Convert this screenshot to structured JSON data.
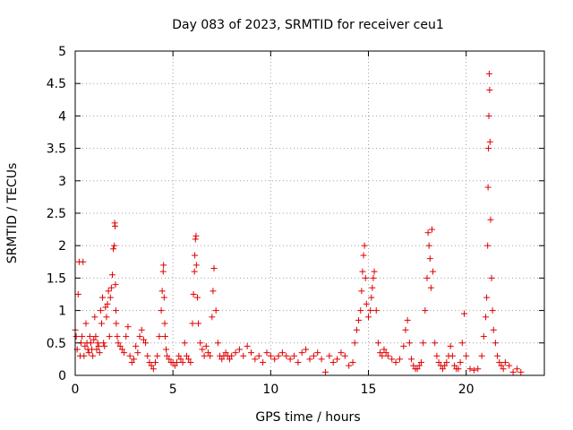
{
  "chart_data": {
    "type": "scatter",
    "title": "Day 083 of 2023, SRMTID for receiver ceu1",
    "xlabel": "GPS time / hours",
    "ylabel": "SRMTID / TECUs",
    "xlim": [
      0,
      24
    ],
    "ylim": [
      0,
      5
    ],
    "xticks": [
      0,
      5,
      10,
      15,
      20
    ],
    "xtick_labels": [
      "0",
      "5",
      "10",
      "15",
      "20"
    ],
    "yticks": [
      0,
      0.5,
      1,
      1.5,
      2,
      2.5,
      3,
      3.5,
      4,
      4.5,
      5
    ],
    "ytick_labels": [
      "0",
      "0.5",
      "1",
      "1.5",
      "2",
      "2.5",
      "3",
      "3.5",
      "4",
      "4.5",
      "5"
    ],
    "grid": true,
    "marker": "+",
    "color": "#e00000",
    "series": [
      {
        "name": "ceu1",
        "x": [
          0.0,
          0.05,
          0.1,
          0.15,
          0.2,
          0.25,
          0.3,
          0.35,
          0.4,
          0.45,
          0.5,
          0.55,
          0.6,
          0.65,
          0.7,
          0.75,
          0.8,
          0.85,
          0.9,
          0.95,
          1.0,
          1.05,
          1.1,
          1.15,
          1.2,
          1.25,
          1.3,
          1.35,
          1.4,
          1.45,
          1.5,
          1.55,
          1.6,
          1.65,
          1.7,
          1.75,
          1.8,
          1.85,
          1.9,
          1.95,
          2.0,
          2.02,
          2.04,
          2.06,
          2.08,
          2.1,
          2.15,
          2.2,
          2.3,
          2.4,
          2.5,
          2.6,
          2.7,
          2.8,
          2.9,
          3.0,
          3.1,
          3.2,
          3.3,
          3.4,
          3.5,
          3.6,
          3.7,
          3.8,
          3.9,
          4.0,
          4.1,
          4.2,
          4.3,
          4.4,
          4.45,
          4.5,
          4.52,
          4.55,
          4.58,
          4.6,
          4.65,
          4.7,
          4.8,
          4.9,
          5.0,
          5.1,
          5.2,
          5.3,
          5.4,
          5.5,
          5.6,
          5.7,
          5.8,
          5.9,
          6.0,
          6.05,
          6.1,
          6.12,
          6.15,
          6.18,
          6.2,
          6.25,
          6.3,
          6.4,
          6.5,
          6.6,
          6.7,
          6.8,
          6.9,
          7.0,
          7.05,
          7.1,
          7.2,
          7.3,
          7.4,
          7.5,
          7.6,
          7.7,
          7.8,
          7.9,
          8.0,
          8.2,
          8.4,
          8.6,
          8.8,
          9.0,
          9.2,
          9.4,
          9.6,
          9.8,
          10.0,
          10.2,
          10.4,
          10.6,
          10.8,
          11.0,
          11.2,
          11.4,
          11.6,
          11.8,
          12.0,
          12.2,
          12.4,
          12.6,
          12.8,
          13.0,
          13.2,
          13.4,
          13.6,
          13.8,
          14.0,
          14.2,
          14.3,
          14.4,
          14.5,
          14.6,
          14.65,
          14.7,
          14.75,
          14.8,
          14.85,
          14.9,
          15.0,
          15.1,
          15.15,
          15.2,
          15.25,
          15.3,
          15.4,
          15.5,
          15.6,
          15.7,
          15.8,
          15.9,
          16.0,
          16.2,
          16.4,
          16.6,
          16.8,
          16.9,
          17.0,
          17.1,
          17.2,
          17.3,
          17.4,
          17.5,
          17.6,
          17.7,
          17.8,
          17.9,
          18.0,
          18.05,
          18.1,
          18.15,
          18.2,
          18.25,
          18.3,
          18.4,
          18.5,
          18.6,
          18.7,
          18.8,
          18.9,
          19.0,
          19.1,
          19.2,
          19.3,
          19.4,
          19.5,
          19.6,
          19.7,
          19.8,
          19.9,
          20.0,
          20.2,
          20.4,
          20.6,
          20.8,
          20.9,
          21.0,
          21.05,
          21.1,
          21.12,
          21.14,
          21.16,
          21.18,
          21.2,
          21.22,
          21.25,
          21.3,
          21.35,
          21.4,
          21.5,
          21.6,
          21.7,
          21.8,
          21.9,
          22.0,
          22.2,
          22.4,
          22.6,
          22.8
        ],
        "y": [
          0.7,
          0.6,
          0.4,
          1.25,
          1.75,
          0.3,
          0.5,
          0.6,
          1.75,
          0.3,
          0.45,
          0.8,
          0.5,
          0.4,
          0.35,
          0.6,
          0.5,
          0.4,
          0.3,
          0.55,
          0.9,
          0.6,
          0.4,
          0.5,
          0.45,
          0.35,
          1.0,
          0.8,
          1.2,
          0.5,
          0.45,
          1.05,
          0.9,
          1.1,
          1.3,
          0.6,
          1.2,
          1.35,
          1.55,
          1.95,
          2.0,
          2.35,
          2.3,
          1.4,
          1.0,
          0.8,
          0.6,
          0.5,
          0.45,
          0.4,
          0.35,
          0.6,
          0.75,
          0.3,
          0.2,
          0.25,
          0.45,
          0.35,
          0.6,
          0.7,
          0.55,
          0.5,
          0.3,
          0.2,
          0.15,
          0.1,
          0.2,
          0.3,
          0.6,
          1.0,
          1.3,
          1.6,
          1.7,
          1.2,
          0.8,
          0.6,
          0.4,
          0.3,
          0.25,
          0.2,
          0.2,
          0.15,
          0.2,
          0.3,
          0.25,
          0.2,
          0.5,
          0.3,
          0.25,
          0.2,
          0.8,
          1.25,
          1.6,
          1.85,
          2.1,
          2.15,
          1.7,
          1.2,
          0.8,
          0.5,
          0.4,
          0.3,
          0.45,
          0.35,
          0.3,
          0.9,
          1.3,
          1.65,
          1.0,
          0.5,
          0.3,
          0.25,
          0.3,
          0.35,
          0.3,
          0.25,
          0.3,
          0.35,
          0.4,
          0.3,
          0.45,
          0.35,
          0.25,
          0.3,
          0.2,
          0.35,
          0.3,
          0.25,
          0.3,
          0.35,
          0.3,
          0.25,
          0.3,
          0.2,
          0.35,
          0.4,
          0.25,
          0.3,
          0.35,
          0.25,
          0.05,
          0.3,
          0.2,
          0.25,
          0.35,
          0.3,
          0.15,
          0.2,
          0.5,
          0.7,
          0.85,
          1.0,
          1.3,
          1.6,
          1.85,
          2.0,
          1.5,
          1.1,
          0.9,
          1.0,
          1.2,
          1.35,
          1.5,
          1.6,
          1.0,
          0.5,
          0.35,
          0.3,
          0.4,
          0.35,
          0.3,
          0.25,
          0.2,
          0.25,
          0.45,
          0.7,
          0.85,
          0.5,
          0.25,
          0.15,
          0.1,
          0.1,
          0.15,
          0.2,
          0.5,
          1.0,
          1.5,
          2.2,
          2.0,
          1.8,
          1.35,
          2.25,
          1.6,
          0.5,
          0.3,
          0.2,
          0.15,
          0.1,
          0.15,
          0.2,
          0.3,
          0.45,
          0.3,
          0.15,
          0.1,
          0.1,
          0.2,
          0.5,
          0.95,
          0.3,
          0.1,
          0.08,
          0.1,
          0.3,
          0.6,
          0.9,
          1.2,
          2.0,
          2.9,
          3.5,
          4.0,
          4.65,
          4.4,
          3.6,
          2.4,
          1.5,
          1.0,
          0.7,
          0.5,
          0.3,
          0.2,
          0.15,
          0.1,
          0.2,
          0.15,
          0.05,
          0.1,
          0.05
        ]
      }
    ]
  }
}
